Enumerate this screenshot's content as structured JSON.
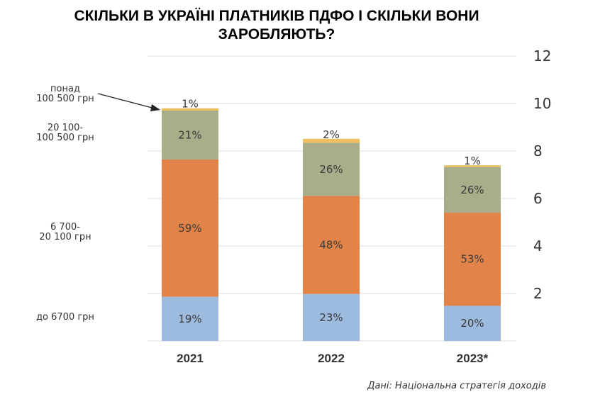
{
  "title": "СКІЛЬКИ В УКРАЇНІ  ПЛАТНИКІВ ПДФО І СКІЛЬКИ ВОНИ ЗАРОБЛЯЮТЬ?",
  "source": "Дані: Національна стратегія доходів",
  "chart_data": {
    "type": "bar",
    "stacked": true,
    "categories": [
      "2021",
      "2022",
      "2023*"
    ],
    "totals": [
      9.8,
      8.6,
      7.4
    ],
    "ylim": [
      0,
      12
    ],
    "yticks": [
      2,
      4,
      6,
      8,
      10,
      12
    ],
    "y_axis_position": "right",
    "grid": true,
    "series": [
      {
        "name": "до 6700 грн",
        "color": "#9dbbdf",
        "shares": [
          19,
          23,
          20
        ]
      },
      {
        "name": "6 700-\n20 100 грн",
        "color": "#e2844a",
        "shares": [
          59,
          48,
          53
        ]
      },
      {
        "name": "20 100-\n100 500 грн",
        "color": "#a9ae8a",
        "shares": [
          21,
          26,
          26
        ]
      },
      {
        "name": "понад\n100 500 грн",
        "color": "#f0c060",
        "shares": [
          1,
          2,
          1
        ]
      }
    ],
    "segment_labels": [
      [
        "19%",
        "59%",
        "21%",
        "1%"
      ],
      [
        "23%",
        "48%",
        "26%",
        "2%"
      ],
      [
        "20%",
        "53%",
        "26%",
        "1%"
      ]
    ]
  }
}
